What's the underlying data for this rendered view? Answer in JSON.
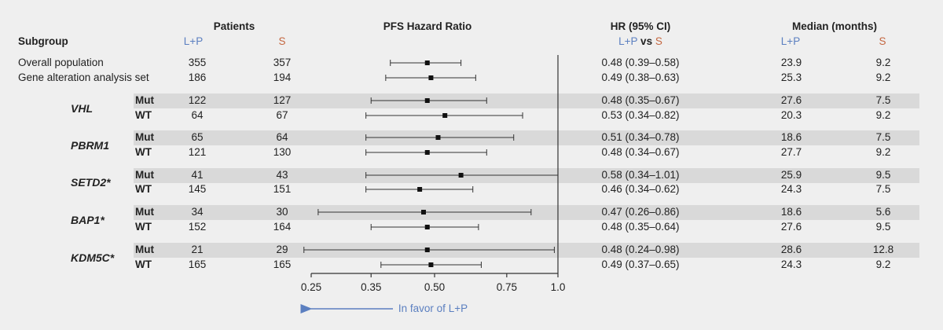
{
  "header": {
    "patients": "Patients",
    "subgroup": "Subgroup",
    "lp": "L+P",
    "s": "S",
    "pfs_hr": "PFS Hazard Ratio",
    "hr_ci": "HR (95% CI)",
    "hr_vs": "vs",
    "median": "Median (months)"
  },
  "footer": {
    "favor_text": "In favor of L+P"
  },
  "colors": {
    "lp": "#5b7fc0",
    "s": "#c4663f",
    "band": "#d9d9d9"
  },
  "rows": [
    {
      "label": "Overall population",
      "lp_n": "355",
      "s_n": "357",
      "hr": "0.48 (0.39–0.58)",
      "med_lp": "23.9",
      "med_s": "9.2"
    },
    {
      "label": "Gene alteration analysis set",
      "lp_n": "186",
      "s_n": "194",
      "hr": "0.49 (0.38–0.63)",
      "med_lp": "25.3",
      "med_s": "9.2"
    },
    {
      "gene": "VHL",
      "status": "Mut",
      "lp_n": "122",
      "s_n": "127",
      "hr": "0.48 (0.35–0.67)",
      "med_lp": "27.6",
      "med_s": "7.5"
    },
    {
      "status": "WT",
      "lp_n": "64",
      "s_n": "67",
      "hr": "0.53 (0.34–0.82)",
      "med_lp": "20.3",
      "med_s": "9.2"
    },
    {
      "gene": "PBRM1",
      "status": "Mut",
      "lp_n": "65",
      "s_n": "64",
      "hr": "0.51 (0.34–0.78)",
      "med_lp": "18.6",
      "med_s": "7.5"
    },
    {
      "status": "WT",
      "lp_n": "121",
      "s_n": "130",
      "hr": "0.48 (0.34–0.67)",
      "med_lp": "27.7",
      "med_s": "9.2"
    },
    {
      "gene": "SETD2*",
      "status": "Mut",
      "lp_n": "41",
      "s_n": "43",
      "hr": "0.58 (0.34–1.01)",
      "med_lp": "25.9",
      "med_s": "9.5"
    },
    {
      "status": "WT",
      "lp_n": "145",
      "s_n": "151",
      "hr": "0.46 (0.34–0.62)",
      "med_lp": "24.3",
      "med_s": "7.5"
    },
    {
      "gene": "BAP1*",
      "status": "Mut",
      "lp_n": "34",
      "s_n": "30",
      "hr": "0.47 (0.26–0.86)",
      "med_lp": "18.6",
      "med_s": "5.6"
    },
    {
      "status": "WT",
      "lp_n": "152",
      "s_n": "164",
      "hr": "0.48 (0.35–0.64)",
      "med_lp": "27.6",
      "med_s": "9.5"
    },
    {
      "gene": "KDM5C*",
      "status": "Mut",
      "lp_n": "21",
      "s_n": "29",
      "hr": "0.48 (0.24–0.98)",
      "med_lp": "28.6",
      "med_s": "12.8"
    },
    {
      "status": "WT",
      "lp_n": "165",
      "s_n": "165",
      "hr": "0.49 (0.37–0.65)",
      "med_lp": "24.3",
      "med_s": "9.2"
    }
  ],
  "chart_data": {
    "type": "forest",
    "title": "PFS Hazard Ratio",
    "xlabel": "",
    "ylabel": "",
    "x_scale": "log",
    "xlim": [
      0.25,
      1.0
    ],
    "xticks": [
      0.25,
      0.35,
      0.5,
      0.75,
      1.0
    ],
    "xtick_labels": [
      "0.25",
      "0.35",
      "0.50",
      "0.75",
      "1.0"
    ],
    "reference_line": 1.0,
    "grid": false,
    "categories": [
      "Overall population",
      "Gene alteration analysis set",
      "VHL Mut",
      "VHL WT",
      "PBRM1 Mut",
      "PBRM1 WT",
      "SETD2* Mut",
      "SETD2* WT",
      "BAP1* Mut",
      "BAP1* WT",
      "KDM5C* Mut",
      "KDM5C* WT"
    ],
    "hr": [
      0.48,
      0.49,
      0.48,
      0.53,
      0.51,
      0.48,
      0.58,
      0.46,
      0.47,
      0.48,
      0.48,
      0.49
    ],
    "lower": [
      0.39,
      0.38,
      0.35,
      0.34,
      0.34,
      0.34,
      0.34,
      0.34,
      0.26,
      0.35,
      0.24,
      0.37
    ],
    "upper": [
      0.58,
      0.63,
      0.67,
      0.82,
      0.78,
      0.67,
      1.01,
      0.62,
      0.86,
      0.64,
      0.98,
      0.65
    ],
    "annotation": "In favor of L+P"
  }
}
